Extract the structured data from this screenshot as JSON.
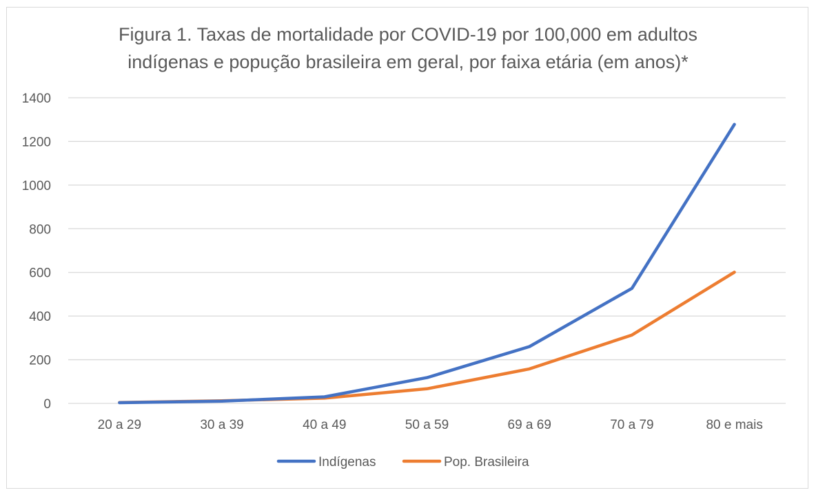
{
  "chart_data": {
    "type": "line",
    "title_lines": [
      "Figura 1. Taxas de mortalidade por COVID-19 por 100,000 em adultos",
      "indígenas e popução brasileira em geral, por faixa etária (em anos)*"
    ],
    "xlabel": "",
    "ylabel": "",
    "categories": [
      "20 a 29",
      "30 a 39",
      "40 a 49",
      "50 a 59",
      "69 a 69",
      "70 a 79",
      "80 e mais"
    ],
    "ylim": [
      0,
      1400
    ],
    "yticks": [
      "0",
      "200",
      "400",
      "600",
      "800",
      "1000",
      "1200",
      "1400"
    ],
    "grid": true,
    "legend_position": "bottom",
    "series": [
      {
        "name": "Indígenas",
        "color": "#4472c4",
        "values": [
          3,
          10,
          30,
          118,
          260,
          527,
          1278
        ]
      },
      {
        "name": "Pop. Brasileira",
        "color": "#ed7d31",
        "values": [
          4,
          12,
          24,
          67,
          158,
          313,
          601
        ]
      }
    ]
  }
}
